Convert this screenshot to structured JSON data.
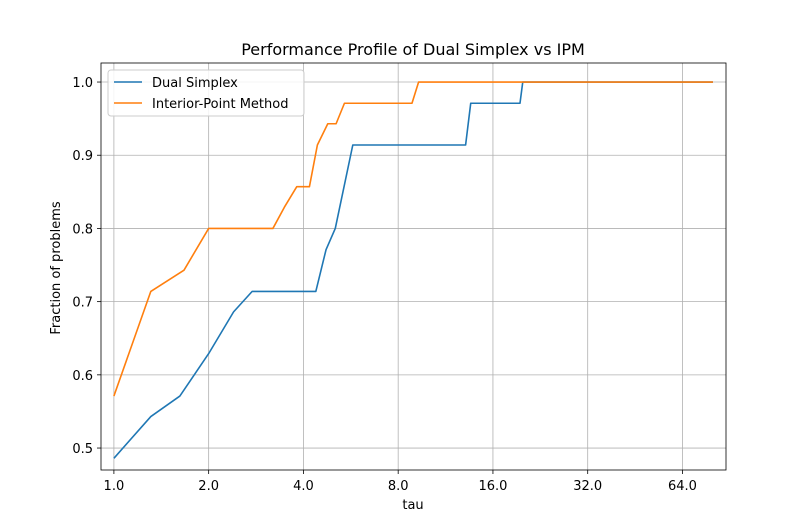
{
  "chart_data": {
    "type": "line",
    "title": "Performance Profile of Dual Simplex vs IPM",
    "xlabel": "tau",
    "ylabel": "Fraction of problems",
    "x_scale": "log2",
    "xlim": [
      0.91,
      88
    ],
    "ylim": [
      0.47,
      1.026
    ],
    "x_ticks": [
      1.0,
      2.0,
      4.0,
      8.0,
      16.0,
      32.0,
      64.0
    ],
    "x_tick_labels": [
      "1.0",
      "2.0",
      "4.0",
      "8.0",
      "16.0",
      "32.0",
      "64.0"
    ],
    "y_ticks": [
      0.5,
      0.6,
      0.7,
      0.8,
      0.9,
      1.0
    ],
    "y_tick_labels": [
      "0.5",
      "0.6",
      "0.7",
      "0.8",
      "0.9",
      "1.0"
    ],
    "grid": true,
    "legend_position": "top-left",
    "series": [
      {
        "name": "Dual Simplex",
        "color": "#1f77b4",
        "points": [
          [
            1.0,
            0.486
          ],
          [
            1.31,
            0.543
          ],
          [
            1.62,
            0.571
          ],
          [
            2.0,
            0.629
          ],
          [
            2.4,
            0.686
          ],
          [
            2.75,
            0.714
          ],
          [
            4.38,
            0.714
          ],
          [
            4.72,
            0.771
          ],
          [
            5.05,
            0.8
          ],
          [
            5.74,
            0.914
          ],
          [
            13.1,
            0.914
          ],
          [
            13.6,
            0.971
          ],
          [
            19.5,
            0.971
          ],
          [
            19.9,
            1.0
          ],
          [
            80.0,
            1.0
          ]
        ]
      },
      {
        "name": "Interior-Point Method",
        "color": "#ff7f0e",
        "points": [
          [
            1.0,
            0.571
          ],
          [
            1.31,
            0.714
          ],
          [
            1.67,
            0.743
          ],
          [
            2.0,
            0.8
          ],
          [
            3.2,
            0.8
          ],
          [
            3.48,
            0.829
          ],
          [
            3.81,
            0.857
          ],
          [
            4.18,
            0.857
          ],
          [
            4.43,
            0.914
          ],
          [
            4.78,
            0.943
          ],
          [
            5.08,
            0.943
          ],
          [
            5.4,
            0.971
          ],
          [
            8.85,
            0.971
          ],
          [
            9.29,
            1.0
          ],
          [
            80.0,
            1.0
          ]
        ]
      }
    ]
  }
}
